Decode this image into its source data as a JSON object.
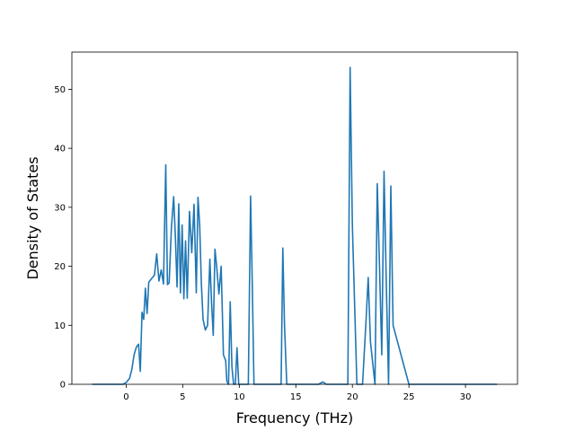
{
  "chart_data": {
    "type": "line",
    "title": "",
    "xlabel": "Frequency (THz)",
    "ylabel": "Density of States",
    "xlim": [
      -4.8,
      34.6
    ],
    "ylim": [
      0,
      56.3
    ],
    "xticks": [
      0,
      5,
      10,
      15,
      20,
      25,
      30
    ],
    "yticks": [
      0,
      10,
      20,
      30,
      40,
      50
    ],
    "grid": false,
    "legend": "none",
    "series_color": "#1f77b4",
    "series": [
      {
        "x": [
          -3.0,
          -1.0,
          -0.3,
          0.0,
          0.3,
          0.5,
          0.7,
          0.9,
          1.1,
          1.25,
          1.4,
          1.55,
          1.7,
          1.85,
          2.0,
          2.2,
          2.5,
          2.7,
          2.9,
          3.1,
          3.3,
          3.5,
          3.65,
          3.8,
          4.0,
          4.2,
          4.35,
          4.5,
          4.65,
          4.8,
          4.95,
          5.1,
          5.25,
          5.4,
          5.6,
          5.8,
          6.0,
          6.2,
          6.35,
          6.5,
          6.65,
          6.8,
          7.0,
          7.2,
          7.4,
          7.55,
          7.7,
          7.85,
          8.0,
          8.2,
          8.4,
          8.6,
          8.8,
          8.9,
          9.05,
          9.2,
          9.35,
          9.5,
          9.65,
          9.8,
          9.95,
          10.1,
          10.2,
          10.3,
          10.8,
          11.0,
          11.15,
          11.3,
          11.5,
          13.7,
          13.85,
          14.0,
          14.2,
          14.5,
          17.0,
          17.4,
          17.7,
          18.0,
          19.6,
          19.8,
          20.0,
          20.4,
          20.9,
          21.2,
          21.4,
          21.6,
          22.0,
          22.2,
          22.4,
          22.6,
          22.8,
          23.0,
          23.2,
          23.4,
          23.6,
          25.0,
          32.8
        ],
        "y": [
          0,
          0,
          0,
          0.3,
          1.0,
          2.5,
          5.0,
          6.3,
          6.8,
          2.2,
          12.2,
          11.0,
          16.3,
          12.0,
          17.3,
          17.8,
          18.5,
          22.1,
          17.5,
          19.4,
          17.0,
          37.2,
          16.9,
          17.2,
          26.5,
          31.8,
          25.0,
          16.5,
          30.6,
          15.5,
          27.0,
          14.5,
          24.3,
          14.6,
          29.3,
          22.3,
          30.5,
          15.5,
          31.7,
          27.0,
          17.0,
          11.0,
          9.2,
          10.0,
          21.2,
          13.8,
          8.3,
          22.9,
          20.0,
          15.3,
          20.0,
          5.0,
          4.0,
          0.5,
          0,
          14.0,
          3.0,
          0,
          0,
          6.2,
          0,
          0,
          0,
          0,
          0,
          31.9,
          17.0,
          0,
          0,
          0,
          23.1,
          10.0,
          0,
          0,
          0,
          0.4,
          0,
          0,
          0,
          53.7,
          27.0,
          0,
          0,
          10.5,
          18.1,
          7.2,
          0,
          34.0,
          20.0,
          5.0,
          36.1,
          17.0,
          0,
          33.6,
          10.0,
          0,
          0
        ]
      }
    ]
  }
}
